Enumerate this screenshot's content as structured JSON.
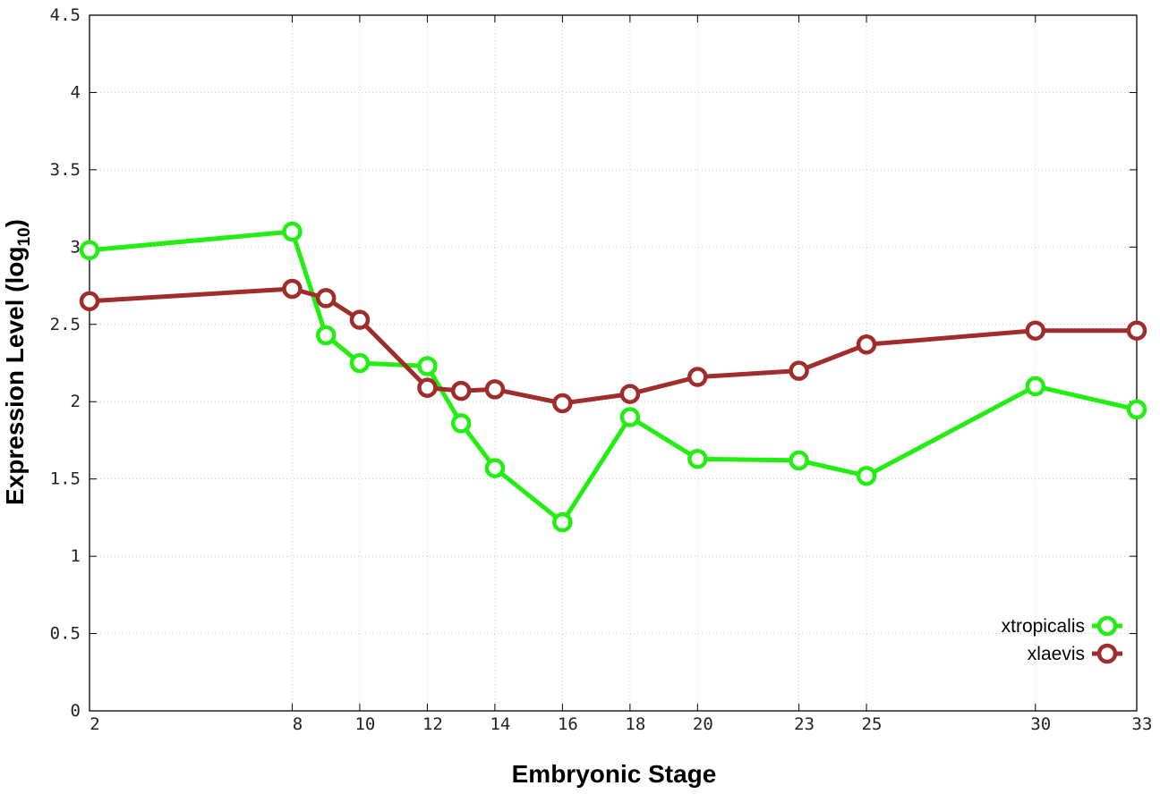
{
  "chart_data": {
    "type": "line",
    "xlabel": "Embryonic Stage",
    "ylabel": {
      "text": "Expression Level (log",
      "subscript": "10",
      "suffix": ")"
    },
    "x": [
      2,
      8,
      9,
      10,
      12,
      13,
      14,
      16,
      18,
      20,
      23,
      25,
      30,
      33
    ],
    "xticks": [
      2,
      8,
      10,
      12,
      14,
      16,
      18,
      20,
      23,
      25,
      30,
      33
    ],
    "xtick_labels": [
      "2",
      "8",
      "10",
      "12",
      "14",
      "16",
      "18",
      "20",
      "23",
      "25",
      "30",
      "33"
    ],
    "yticks": [
      0,
      0.5,
      1,
      1.5,
      2,
      2.5,
      3,
      3.5,
      4,
      4.5
    ],
    "ytick_labels": [
      "0",
      "0.5",
      "1",
      "1.5",
      "2",
      "2.5",
      "3",
      "3.5",
      "4",
      "4.5"
    ],
    "ylim": [
      0,
      4.5
    ],
    "grid": true,
    "legend_position": "bottom-right",
    "series": [
      {
        "name": "xtropicalis",
        "color": "#22ee11",
        "values": [
          2.98,
          3.1,
          2.43,
          2.25,
          2.23,
          1.86,
          1.57,
          1.22,
          1.9,
          1.63,
          1.62,
          1.52,
          2.1,
          1.95
        ]
      },
      {
        "name": "xlaevis",
        "color": "#a02c2c",
        "values": [
          2.65,
          2.73,
          2.67,
          2.53,
          2.09,
          2.07,
          2.08,
          1.99,
          2.05,
          2.16,
          2.2,
          2.37,
          2.46,
          2.46
        ]
      }
    ]
  }
}
